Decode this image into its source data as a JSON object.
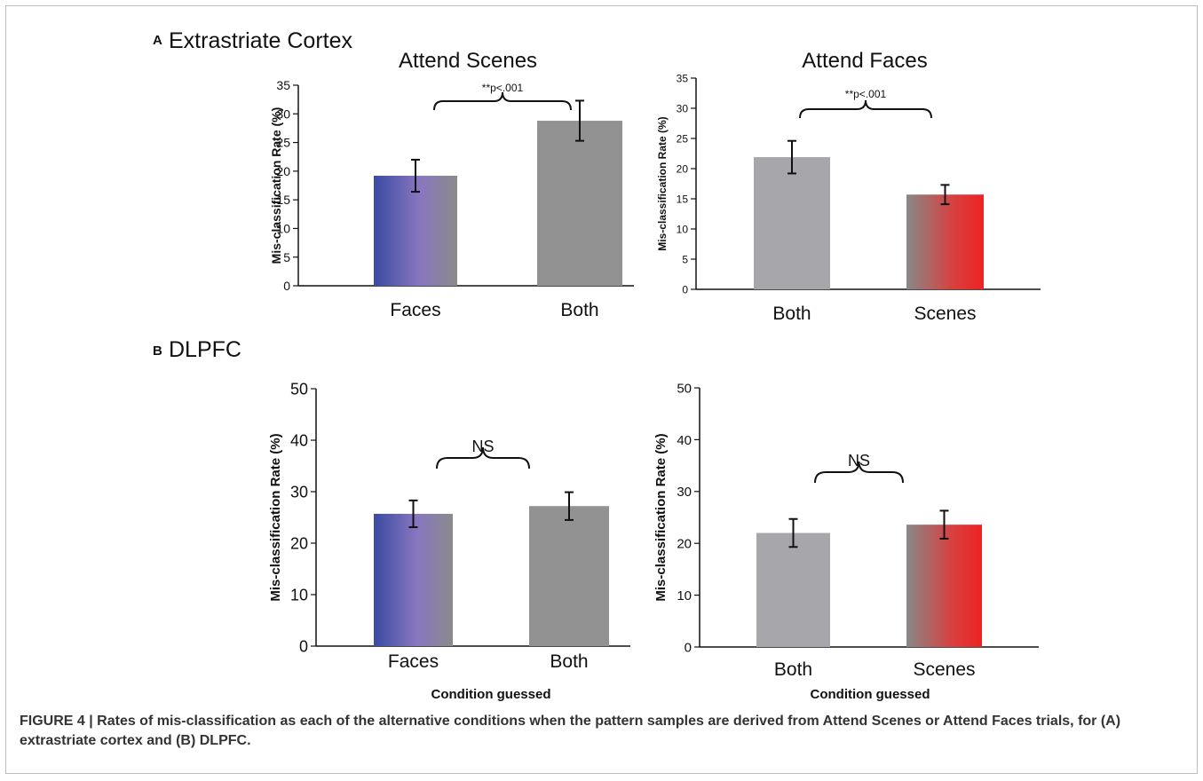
{
  "figure": {
    "panel_a_letter": "A",
    "panel_a_title": "Extrastriate Cortex",
    "panel_b_letter": "B",
    "panel_b_title": "DLPFC",
    "caption": "FIGURE 4 | Rates of mis-classification as each of the alternative conditions when the pattern samples are derived from Attend Scenes or Attend Faces trials, for (A) extrastriate cortex and (B) DLPFC."
  },
  "colors": {
    "faces_blue": "#3a4aa2",
    "faces_purple": "#8877c0",
    "both_gray": "#909090",
    "both_light_gray": "#a6a6ab",
    "scenes_red": "#ee2222",
    "scenes_gray": "#888888"
  },
  "chart_data": [
    {
      "id": "a-left",
      "type": "bar",
      "title": "Attend Scenes",
      "ylabel": "Mis-classification Rate (%)",
      "xlabel": "",
      "ylim": [
        0,
        35
      ],
      "yticks": [
        0,
        5,
        10,
        15,
        20,
        25,
        30,
        35
      ],
      "categories": [
        "Faces",
        "Both"
      ],
      "values": [
        19.2,
        28.8
      ],
      "errors": [
        2.8,
        3.5
      ],
      "annotation": "**p<.001"
    },
    {
      "id": "a-right",
      "type": "bar",
      "title": "Attend Faces",
      "ylabel": "Mis-classification Rate (%)",
      "xlabel": "",
      "ylim": [
        0,
        35
      ],
      "yticks": [
        0,
        5,
        10,
        15,
        20,
        25,
        30,
        35
      ],
      "categories": [
        "Both",
        "Scenes"
      ],
      "values": [
        21.9,
        15.7
      ],
      "errors": [
        2.7,
        1.6
      ],
      "annotation": "**p<.001"
    },
    {
      "id": "b-left",
      "type": "bar",
      "title": "",
      "ylabel": "Mis-classification Rate (%)",
      "xlabel": "Condition guessed",
      "ylim": [
        0,
        50
      ],
      "yticks": [
        0,
        10,
        20,
        30,
        40,
        50
      ],
      "categories": [
        "Faces",
        "Both"
      ],
      "values": [
        25.7,
        27.2
      ],
      "errors": [
        2.6,
        2.7
      ],
      "annotation": "NS"
    },
    {
      "id": "b-right",
      "type": "bar",
      "title": "",
      "ylabel": "Mis-classification Rate (%)",
      "xlabel": "Condition guessed",
      "ylim": [
        0,
        50
      ],
      "yticks": [
        0,
        10,
        20,
        30,
        40,
        50
      ],
      "categories": [
        "Both",
        "Scenes"
      ],
      "values": [
        22.0,
        23.6
      ],
      "errors": [
        2.7,
        2.7
      ],
      "annotation": "NS"
    }
  ]
}
